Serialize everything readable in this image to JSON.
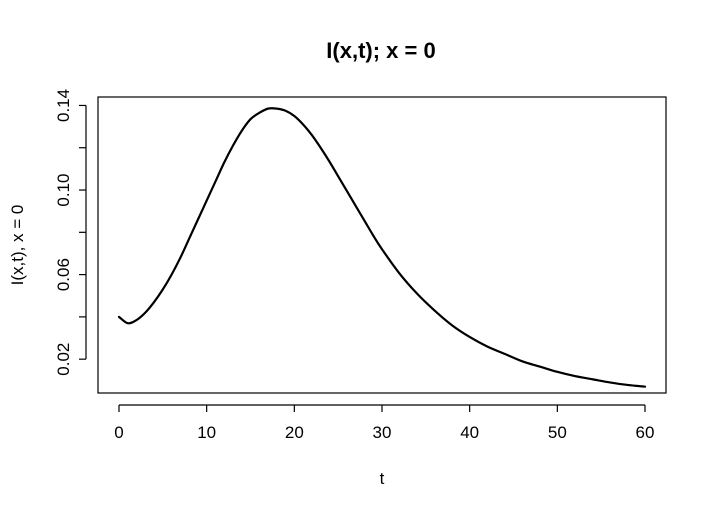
{
  "chart_data": {
    "type": "line",
    "title": "I(x,t); x = 0",
    "xlabel": "t",
    "ylabel": "I(x,t), x = 0",
    "xlim": [
      0,
      60
    ],
    "ylim": [
      0.004,
      0.144
    ],
    "x_ticks": [
      0,
      10,
      20,
      30,
      40,
      50,
      60
    ],
    "x_tick_labels": [
      "0",
      "10",
      "20",
      "30",
      "40",
      "50",
      "60"
    ],
    "y_ticks": [
      0.02,
      0.04,
      0.06,
      0.08,
      0.1,
      0.12,
      0.14
    ],
    "y_tick_labels": [
      "0.02",
      "",
      "0.06",
      "",
      "0.10",
      "",
      "0.14"
    ],
    "grid": false,
    "line_color": "#000000",
    "series": [
      {
        "x": [
          0,
          1,
          2,
          3,
          4,
          5,
          6,
          7,
          8,
          9,
          10,
          11,
          12,
          13,
          14,
          15,
          16,
          17,
          18,
          19,
          20,
          21,
          22,
          23,
          24,
          25,
          26,
          27,
          28,
          29,
          30,
          32,
          34,
          36,
          38,
          40,
          42,
          44,
          46,
          48,
          50,
          52,
          54,
          56,
          58,
          60
        ],
        "y": [
          0.04,
          0.037,
          0.0385,
          0.042,
          0.047,
          0.053,
          0.06,
          0.068,
          0.077,
          0.086,
          0.095,
          0.104,
          0.113,
          0.121,
          0.128,
          0.1335,
          0.1365,
          0.1385,
          0.1385,
          0.1375,
          0.135,
          0.131,
          0.126,
          0.12,
          0.1135,
          0.1065,
          0.0995,
          0.0925,
          0.0855,
          0.0785,
          0.072,
          0.0605,
          0.051,
          0.043,
          0.036,
          0.0305,
          0.026,
          0.0225,
          0.019,
          0.0165,
          0.014,
          0.012,
          0.0105,
          0.009,
          0.0078,
          0.007
        ]
      }
    ]
  }
}
